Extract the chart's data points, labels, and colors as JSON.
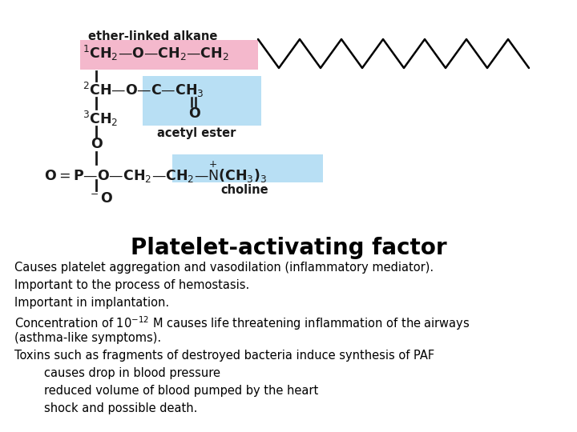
{
  "title": "Platelet-activating factor",
  "title_fontsize": 20,
  "title_fontweight": "bold",
  "bg_color": "#ffffff",
  "pink_color": "#f4b8cc",
  "blue_color": "#b8dff4",
  "struct_color": "#1a1a1a",
  "label_color": "#1a1a1a",
  "text_lines": [
    "Causes platelet aggregation and vasodilation (inflammatory mediator).",
    "Important to the process of hemostasis.",
    "Important in implantation.",
    "Concentration of 10sup M causes life threatening inflammation of the airways",
    "(asthma-like symptoms).",
    "Toxins such as fragments of destroyed bacteria induce synthesis of PAF",
    "        causes drop in blood pressure",
    "        reduced volume of blood pumped by the heart",
    "        shock and possible death."
  ],
  "text_fontsize": 10.5,
  "text_color": "#000000"
}
